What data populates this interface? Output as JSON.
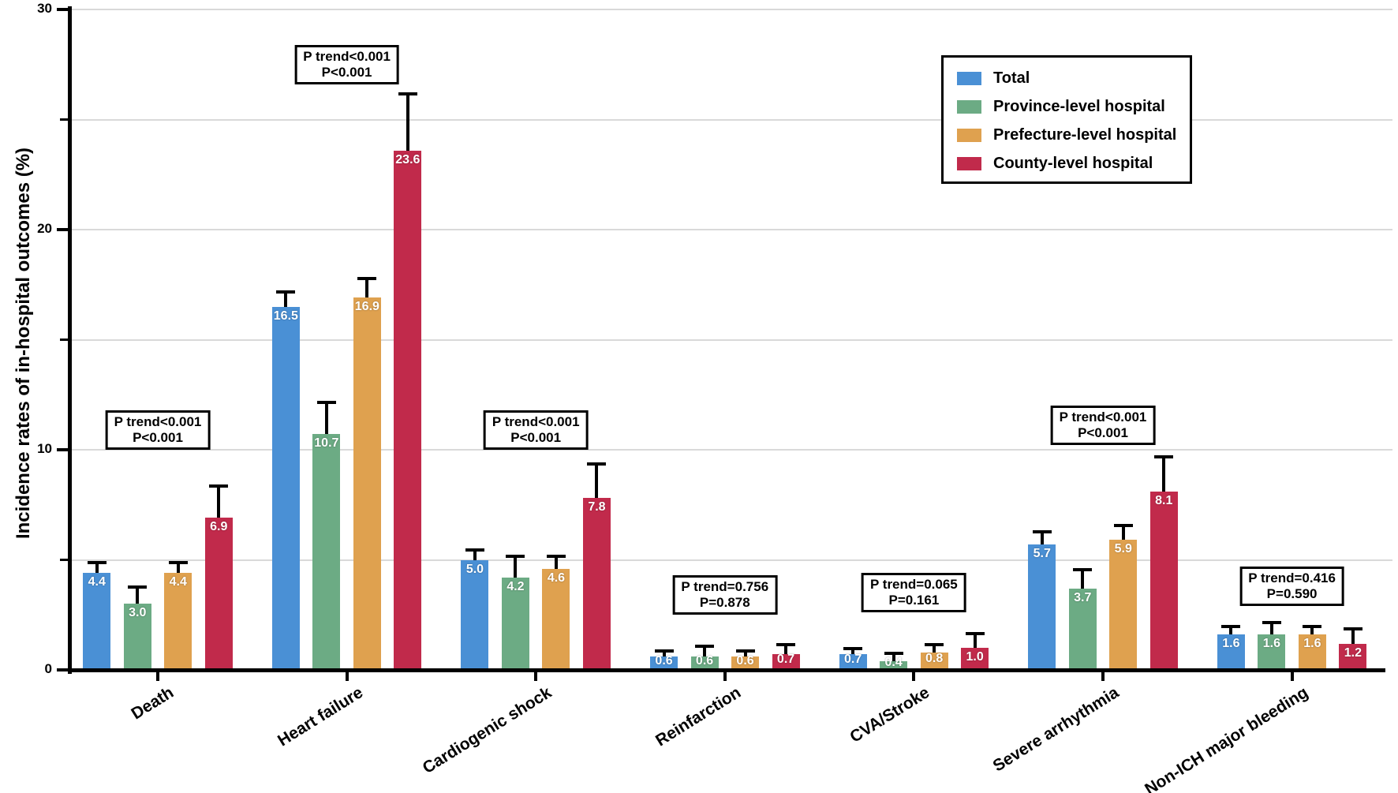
{
  "chart_data": {
    "type": "bar",
    "title": "",
    "ylabel": "Incidence rates of in-hospital outcomes (%)",
    "xlabel": "",
    "ylim": [
      0,
      30
    ],
    "yticks_major": [
      0,
      10,
      20,
      30
    ],
    "yticks_minor": [
      5,
      15,
      25
    ],
    "gridlines": [
      5,
      10,
      15,
      20,
      25,
      30
    ],
    "grid": true,
    "legend_position": "top-right",
    "categories": [
      "Death",
      "Heart failure",
      "Cardiogenic shock",
      "Reinfarction",
      "CVA/Stroke",
      "Severe arrhythmia",
      "Non-ICH major bleeding"
    ],
    "series": [
      {
        "name": "Total",
        "color": "#4a90d5",
        "values": [
          4.4,
          16.5,
          5.0,
          0.6,
          0.7,
          5.7,
          1.6
        ],
        "upper_ci": [
          4.9,
          17.2,
          5.5,
          0.9,
          1.0,
          6.3,
          2.0
        ]
      },
      {
        "name": "Province-level hospital",
        "color": "#6cab84",
        "values": [
          3.0,
          10.7,
          4.2,
          0.6,
          0.4,
          3.7,
          1.6
        ],
        "upper_ci": [
          3.8,
          12.2,
          5.2,
          1.1,
          0.8,
          4.6,
          2.2
        ]
      },
      {
        "name": "Prefecture-level hospital",
        "color": "#dfa14f",
        "values": [
          4.4,
          16.9,
          4.6,
          0.6,
          0.8,
          5.9,
          1.6
        ],
        "upper_ci": [
          4.9,
          17.8,
          5.2,
          0.9,
          1.2,
          6.6,
          2.0
        ]
      },
      {
        "name": "County-level hospital",
        "color": "#c12a4b",
        "values": [
          6.9,
          23.6,
          7.8,
          0.7,
          1.0,
          8.1,
          1.2
        ],
        "upper_ci": [
          8.4,
          26.2,
          9.4,
          1.2,
          1.7,
          9.7,
          1.9
        ]
      }
    ],
    "annotations": [
      {
        "category": "Death",
        "lines": [
          "P trend<0.001",
          "P<0.001"
        ],
        "top_value": 11.8
      },
      {
        "category": "Heart failure",
        "lines": [
          "P trend<0.001",
          "P<0.001"
        ],
        "top_value": 28.4
      },
      {
        "category": "Cardiogenic shock",
        "lines": [
          "P trend<0.001",
          "P<0.001"
        ],
        "top_value": 11.8
      },
      {
        "category": "Reinfarction",
        "lines": [
          "P trend=0.756",
          "P=0.878"
        ],
        "top_value": 4.3
      },
      {
        "category": "CVA/Stroke",
        "lines": [
          "P trend=0.065",
          "P=0.161"
        ],
        "top_value": 4.4
      },
      {
        "category": "Severe arrhythmia",
        "lines": [
          "P trend<0.001",
          "P<0.001"
        ],
        "top_value": 12.0
      },
      {
        "category": "Non-ICH major bleeding",
        "lines": [
          "P trend=0.416",
          "P=0.590"
        ],
        "top_value": 4.7
      }
    ],
    "colors": {
      "axis": "#000000",
      "gridline": "#d9d9d9",
      "value_label": "#ffffff",
      "background": "#ffffff"
    }
  }
}
